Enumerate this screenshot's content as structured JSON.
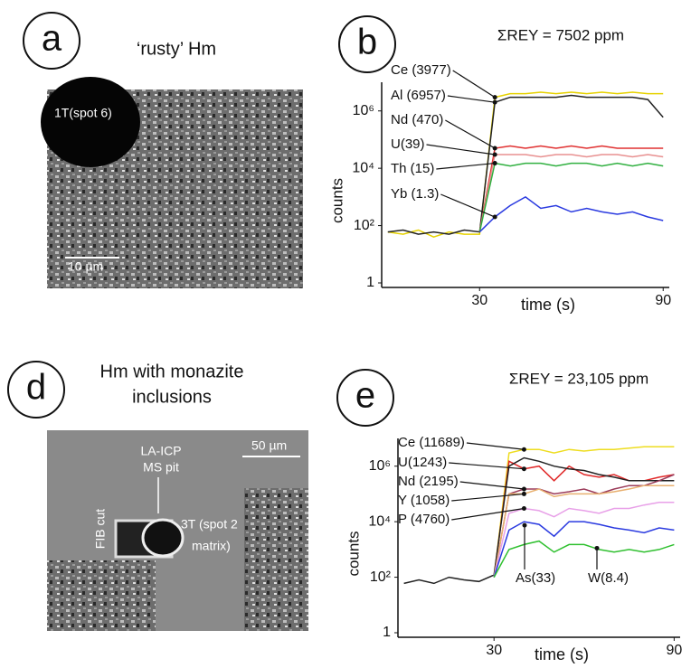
{
  "panels": [
    {
      "letter": "a",
      "caption": "‘rusty’ Hm",
      "image_labels": [
        "1T(spot 6)",
        "10 µm"
      ]
    },
    {
      "letter": "b"
    },
    {
      "letter": "d",
      "caption": [
        "Hm with monazite",
        "inclusions"
      ],
      "image_labels": [
        "LA-ICP",
        "MS pit",
        "FIB cut",
        "3T (spot 2",
        "matrix)",
        "50 µm"
      ]
    },
    {
      "letter": "e"
    }
  ],
  "chart_data": [
    {
      "type": "line",
      "title": "ΣREY = 7502 ppm",
      "x_label": "time (s)",
      "y_label": "counts",
      "log_scale": true,
      "x": [
        0,
        5,
        10,
        15,
        20,
        25,
        30,
        35,
        40,
        45,
        50,
        55,
        60,
        65,
        70,
        75,
        80,
        85,
        90
      ],
      "xlim": [
        -2,
        92
      ],
      "xticks": [
        30,
        90
      ],
      "ylim": [
        1,
        10000000
      ],
      "yticks": [
        1,
        {
          "value": 100,
          "label": "10²"
        },
        {
          "value": 10000,
          "label": "10⁴"
        },
        {
          "value": 1000000,
          "label": "10⁶"
        }
      ],
      "series": [
        {
          "name": "Ce (3977)",
          "color": "#e6d200",
          "values": [
            60,
            50,
            70,
            40,
            60,
            50,
            50,
            3000000,
            4000000,
            4000000,
            4500000,
            4000000,
            4500000,
            4000000,
            4500000,
            4000000,
            4500000,
            4000000,
            4000000
          ]
        },
        {
          "name": "Al (6957)",
          "color": "#222222",
          "values": [
            60,
            70,
            50,
            60,
            50,
            70,
            60,
            2000000,
            3000000,
            3000000,
            3000000,
            3000000,
            3500000,
            3000000,
            3000000,
            3000000,
            3000000,
            2500000,
            600000
          ]
        },
        {
          "name": "Nd (470)",
          "color": "#e03030",
          "values": [
            null,
            null,
            null,
            null,
            null,
            null,
            60,
            50000,
            60000,
            50000,
            60000,
            50000,
            60000,
            50000,
            60000,
            50000,
            50000,
            50000,
            50000
          ]
        },
        {
          "name": "U(39)",
          "color": "#e89090",
          "values": [
            null,
            null,
            null,
            null,
            null,
            null,
            60,
            30000,
            30000,
            30000,
            25000,
            30000,
            30000,
            25000,
            30000,
            30000,
            25000,
            30000,
            25000
          ]
        },
        {
          "name": "Th (15)",
          "color": "#30b040",
          "values": [
            null,
            null,
            null,
            null,
            null,
            null,
            60,
            15000,
            12000,
            15000,
            15000,
            12000,
            15000,
            15000,
            12000,
            15000,
            12000,
            15000,
            12000
          ]
        },
        {
          "name": "Yb (1.3)",
          "color": "#2a3ae0",
          "values": [
            null,
            null,
            null,
            null,
            null,
            null,
            60,
            200,
            500,
            1000,
            400,
            500,
            300,
            400,
            300,
            250,
            300,
            200,
            150
          ]
        }
      ]
    },
    {
      "type": "line",
      "title": "ΣREY = 23,105 ppm",
      "x_label": "time (s)",
      "y_label": "counts",
      "log_scale": true,
      "x": [
        0,
        5,
        10,
        15,
        20,
        25,
        30,
        35,
        40,
        45,
        50,
        55,
        60,
        65,
        70,
        75,
        80,
        85,
        90
      ],
      "xlim": [
        -2,
        92
      ],
      "xticks": [
        30,
        90
      ],
      "ylim": [
        1,
        10000000
      ],
      "yticks": [
        1,
        {
          "value": 100,
          "label": "10²"
        },
        {
          "value": 10000,
          "label": "10⁴"
        },
        {
          "value": 1000000,
          "label": "10⁶"
        }
      ],
      "series": [
        {
          "name": "Ce (11689)",
          "color": "#eedd20",
          "values": [
            null,
            null,
            null,
            null,
            null,
            null,
            100,
            3000000,
            4000000,
            4000000,
            3000000,
            4000000,
            3500000,
            4000000,
            4000000,
            4500000,
            5000000,
            5000000,
            5000000
          ]
        },
        {
          "name": "U(1243)",
          "color": "#e02828",
          "values": [
            null,
            null,
            null,
            null,
            null,
            null,
            100,
            1500000,
            800000,
            1000000,
            300000,
            1000000,
            500000,
            400000,
            500000,
            300000,
            300000,
            400000,
            500000
          ]
        },
        {
          "color": "#222222",
          "values": [
            60,
            80,
            60,
            100,
            80,
            70,
            120,
            1000000,
            2000000,
            1500000,
            1000000,
            800000,
            700000,
            500000,
            400000,
            300000,
            300000,
            300000,
            300000
          ]
        },
        {
          "name": "Nd (2195)",
          "color": "#9b3b5a",
          "values": [
            null,
            null,
            null,
            null,
            null,
            null,
            100,
            100000,
            150000,
            150000,
            100000,
            120000,
            150000,
            100000,
            150000,
            200000,
            200000,
            300000,
            500000
          ]
        },
        {
          "name": "Y (1058)",
          "color": "#e8b070",
          "values": [
            null,
            null,
            null,
            null,
            null,
            null,
            100,
            100000,
            100000,
            150000,
            80000,
            100000,
            100000,
            100000,
            120000,
            150000,
            200000,
            200000,
            200000
          ]
        },
        {
          "name": "P (4760)",
          "color": "#e8a0e8",
          "values": [
            null,
            null,
            null,
            null,
            null,
            null,
            100,
            20000,
            30000,
            25000,
            15000,
            30000,
            25000,
            20000,
            30000,
            30000,
            40000,
            50000,
            50000
          ]
        },
        {
          "name": "As(33)",
          "color": "#2a3ae0",
          "values": [
            null,
            null,
            null,
            null,
            null,
            null,
            100,
            5000,
            10000,
            8000,
            3000,
            10000,
            10000,
            8000,
            6000,
            5000,
            4000,
            6000,
            5000
          ]
        },
        {
          "name": "W(8.4)",
          "color": "#30c030",
          "values": [
            null,
            null,
            null,
            null,
            null,
            null,
            100,
            1000,
            1500,
            2000,
            800,
            1500,
            1500,
            1000,
            800,
            1000,
            800,
            1000,
            1500
          ]
        }
      ]
    }
  ]
}
